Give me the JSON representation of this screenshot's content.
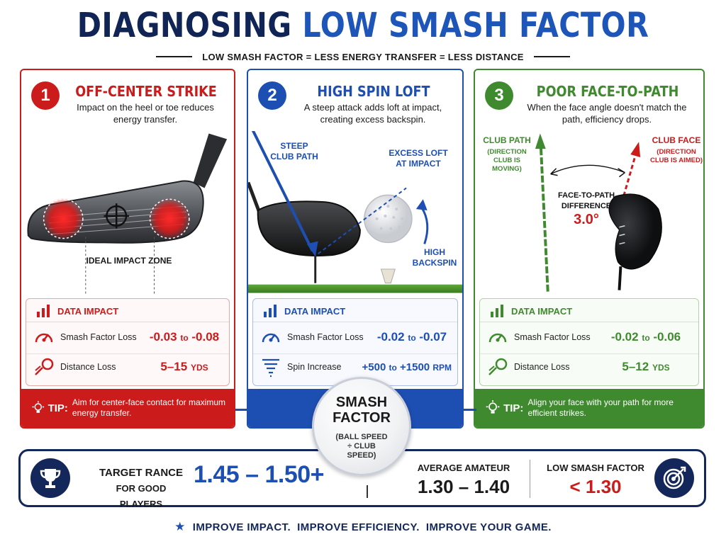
{
  "header": {
    "title_part1": "DIAGNOSING",
    "title_part2": "LOW SMASH FACTOR",
    "subtitle": "LOW SMASH FACTOR = LESS ENERGY TRANSFER = LESS DISTANCE"
  },
  "colors": {
    "red": "#cc1b1b",
    "blue": "#1d4fb3",
    "green": "#3f8a2f",
    "navy": "#13275a"
  },
  "cards": [
    {
      "number": "1",
      "title": "OFF-CENTER STRIKE",
      "description": "Impact on the heel or toe reduces energy transfer.",
      "illustration_label": "IDEAL IMPACT ZONE",
      "data_impact_label": "DATA IMPACT",
      "rows": [
        {
          "label": "Smash Factor Loss",
          "value_a": "-0.03",
          "joiner": "to",
          "value_b": "-0.08",
          "icon": "gauge-icon"
        },
        {
          "label": "Distance Loss",
          "value_a": "5–15",
          "unit": "YDS",
          "icon": "flying-ball-icon"
        }
      ],
      "tip_label": "TIP:",
      "tip_text": "Aim for center-face contact for maximum energy transfer."
    },
    {
      "number": "2",
      "title": "HIGH SPIN LOFT",
      "description": "A steep attack adds loft at impact, creating excess backspin.",
      "labels": {
        "steep_path": "STEEP CLUB PATH",
        "excess_loft": "EXCESS LOFT AT IMPACT",
        "backspin": "HIGH BACKSPIN"
      },
      "data_impact_label": "DATA IMPACT",
      "rows": [
        {
          "label": "Smash Factor Loss",
          "value_a": "-0.02",
          "joiner": "to",
          "value_b": "-0.07",
          "icon": "gauge-icon"
        },
        {
          "label": "Spin Increase",
          "value_a": "+500",
          "joiner": "to",
          "value_b": "+1500",
          "unit": "RPM",
          "icon": "tornado-icon"
        }
      ],
      "tip_label": "",
      "tip_text": ""
    },
    {
      "number": "3",
      "title": "POOR FACE-TO-PATH",
      "description": "When the face angle doesn't match the path, efficiency drops.",
      "labels": {
        "club_path": "CLUB PATH",
        "club_path_sub": "(DIRECTION CLUB IS MOVING)",
        "club_face": "CLUB FACE",
        "club_face_sub": "(DIRECTION CLUB IS AIMED)",
        "difference": "FACE-TO-PATH DIFFERENCE",
        "difference_value": "3.0°"
      },
      "data_impact_label": "DATA IMPACT",
      "rows": [
        {
          "label": "Smash Factor Loss",
          "value_a": "-0.02",
          "joiner": "to",
          "value_b": "-0.06",
          "icon": "gauge-icon"
        },
        {
          "label": "Distance Loss",
          "value_a": "5–12",
          "unit": "YDS",
          "icon": "flying-ball-icon"
        }
      ],
      "tip_label": "TIP:",
      "tip_text": "Align your face with your path for more efficient strikes."
    }
  ],
  "badge": {
    "title_line1": "SMASH",
    "title_line2": "FACTOR",
    "formula": "(BALL SPEED ÷ CLUB SPEED)"
  },
  "range": {
    "target_label": "TARGET RANCE",
    "target_sub": "FOR GOOD PLAYERS",
    "target_value": "1.45 – 1.50+",
    "average_label": "AVERAGE AMATEUR",
    "average_value": "1.30 – 1.40",
    "low_label": "LOW SMASH FACTOR",
    "low_value": "< 1.30"
  },
  "footer": {
    "text": "IMPROVE IMPACT.  IMPROVE EFFICIENCY.  IMPROVE YOUR GAME."
  }
}
